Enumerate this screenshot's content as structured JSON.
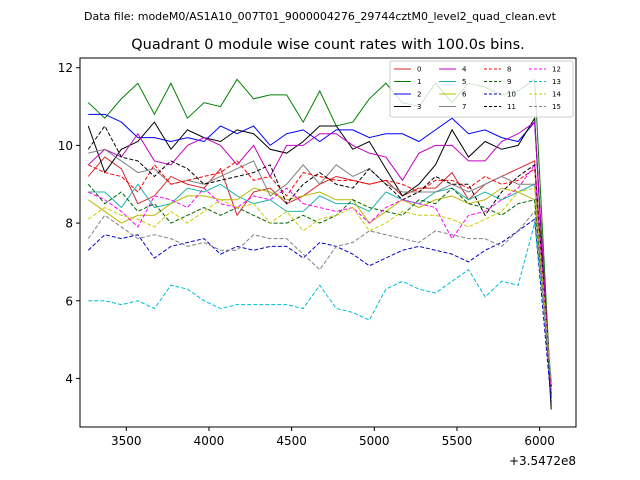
{
  "figure": {
    "suptitle": "Data file: modeM0/AS1A10_007T01_9000004276_29744cztM0_level2_quad_clean.evt"
  },
  "chart_data": {
    "type": "line",
    "title": "Quadrant 0 module wise count rates with 100.0s bins.",
    "xlabel": "",
    "ylabel": "",
    "x_offset_label": "+3.5472e8",
    "xlim": [
      3220,
      6220
    ],
    "ylim": [
      2.75,
      12.25
    ],
    "xticks": [
      3500,
      4000,
      4500,
      5000,
      5500,
      6000
    ],
    "yticks": [
      4,
      6,
      8,
      10,
      12
    ],
    "grid": false,
    "legend": {
      "placement": "top-right",
      "ncol": 4
    },
    "x": [
      3270,
      3370,
      3470,
      3570,
      3670,
      3770,
      3870,
      3970,
      4070,
      4170,
      4270,
      4370,
      4470,
      4570,
      4670,
      4770,
      4870,
      4970,
      5070,
      5170,
      5270,
      5370,
      5470,
      5570,
      5670,
      5770,
      5870,
      5970,
      6070
    ],
    "series": [
      {
        "name": "0",
        "color": "#d62728",
        "dash": "solid",
        "values": [
          9.2,
          9.7,
          9.4,
          8.5,
          8.7,
          9.2,
          9.0,
          8.9,
          9.4,
          8.2,
          8.8,
          8.9,
          8.5,
          8.7,
          9.0,
          9.2,
          9.1,
          9.0,
          9.1,
          8.7,
          8.9,
          8.9,
          9.3,
          8.6,
          9.0,
          9.2,
          9.4,
          9.6,
          3.8
        ]
      },
      {
        "name": "1",
        "color": "#008000",
        "dash": "solid",
        "values": [
          11.1,
          10.7,
          11.2,
          11.6,
          10.8,
          11.6,
          10.7,
          11.1,
          11.0,
          11.7,
          11.2,
          11.3,
          11.3,
          10.6,
          11.4,
          10.5,
          10.6,
          11.2,
          11.6,
          11.1,
          11.0,
          11.6,
          11.1,
          11.6,
          11.5,
          11.3,
          11.4,
          11.7,
          3.5
        ]
      },
      {
        "name": "2",
        "color": "#0000ff",
        "dash": "solid",
        "values": [
          10.8,
          10.8,
          10.6,
          10.2,
          10.2,
          10.1,
          10.2,
          10.1,
          10.5,
          10.3,
          10.5,
          10.0,
          10.3,
          10.4,
          10.1,
          10.4,
          10.4,
          10.2,
          10.3,
          10.3,
          10.1,
          10.4,
          10.7,
          10.3,
          10.4,
          10.2,
          10.1,
          10.6,
          3.3
        ]
      },
      {
        "name": "3",
        "color": "#000000",
        "dash": "solid",
        "values": [
          10.5,
          9.3,
          9.9,
          10.1,
          10.6,
          9.9,
          10.4,
          10.2,
          10.1,
          10.4,
          10.3,
          9.9,
          9.8,
          10.1,
          10.5,
          10.5,
          9.9,
          10.1,
          9.4,
          8.7,
          9.0,
          9.5,
          10.4,
          9.7,
          10.1,
          9.9,
          10.0,
          10.7,
          3.2
        ]
      },
      {
        "name": "4",
        "color": "#c000c0",
        "dash": "solid",
        "values": [
          9.5,
          9.9,
          9.7,
          10.3,
          9.6,
          9.5,
          10.0,
          10.2,
          10.0,
          9.5,
          10.0,
          9.2,
          10.0,
          10.0,
          10.3,
          10.3,
          10.0,
          9.8,
          9.7,
          9.1,
          9.8,
          10.0,
          10.0,
          9.6,
          9.6,
          10.1,
          10.3,
          10.6,
          3.6
        ]
      },
      {
        "name": "5",
        "color": "#20b2aa",
        "dash": "solid",
        "values": [
          8.8,
          8.8,
          8.4,
          9.0,
          8.4,
          8.5,
          8.9,
          8.8,
          9.0,
          8.7,
          8.5,
          8.6,
          8.3,
          8.3,
          8.7,
          8.5,
          8.5,
          8.3,
          8.8,
          8.6,
          8.5,
          8.8,
          8.9,
          8.6,
          8.8,
          8.6,
          8.8,
          9.0,
          3.9
        ]
      },
      {
        "name": "6",
        "color": "#b8b800",
        "dash": "solid",
        "values": [
          8.6,
          8.3,
          8.0,
          8.2,
          8.2,
          8.5,
          8.7,
          8.7,
          8.6,
          8.6,
          8.9,
          8.8,
          8.6,
          8.7,
          8.8,
          8.6,
          8.6,
          8.0,
          8.3,
          8.6,
          8.4,
          8.6,
          8.7,
          8.5,
          8.6,
          8.9,
          8.8,
          8.6,
          3.8
        ]
      },
      {
        "name": "7",
        "color": "#808080",
        "dash": "solid",
        "values": [
          9.8,
          9.9,
          9.6,
          9.3,
          9.4,
          9.0,
          9.1,
          9.0,
          9.2,
          9.4,
          9.6,
          8.7,
          9.0,
          9.5,
          9.0,
          9.5,
          9.2,
          9.4,
          9.0,
          8.8,
          8.8,
          8.8,
          9.0,
          8.8,
          9.0,
          9.2,
          9.0,
          9.0,
          3.6
        ]
      },
      {
        "name": "8",
        "color": "#ff0000",
        "dash": "dash",
        "values": [
          9.5,
          9.3,
          9.2,
          8.8,
          9.5,
          9.0,
          9.1,
          9.2,
          9.3,
          9.6,
          9.1,
          9.2,
          8.7,
          9.3,
          9.2,
          9.1,
          9.1,
          9.0,
          9.1,
          9.0,
          8.8,
          9.1,
          9.1,
          8.9,
          9.2,
          9.0,
          9.1,
          9.4,
          3.8
        ]
      },
      {
        "name": "9",
        "color": "#006400",
        "dash": "dash",
        "values": [
          9.0,
          8.5,
          8.8,
          8.3,
          8.5,
          8.0,
          8.2,
          8.4,
          8.2,
          8.4,
          8.2,
          8.0,
          8.0,
          8.2,
          8.0,
          8.2,
          8.6,
          8.4,
          8.3,
          8.2,
          8.6,
          8.5,
          8.9,
          8.5,
          8.4,
          8.2,
          8.5,
          8.6,
          3.6
        ]
      },
      {
        "name": "10",
        "color": "#0000c8",
        "dash": "dash",
        "values": [
          7.3,
          7.7,
          7.6,
          7.7,
          7.1,
          7.4,
          7.5,
          7.6,
          7.2,
          7.4,
          7.3,
          7.4,
          7.4,
          7.1,
          7.5,
          7.4,
          7.2,
          6.9,
          7.1,
          7.3,
          7.4,
          7.3,
          7.2,
          7.0,
          7.3,
          7.5,
          7.8,
          8.1,
          3.4
        ]
      },
      {
        "name": "11",
        "color": "#000000",
        "dash": "dash",
        "values": [
          9.9,
          10.5,
          9.7,
          9.6,
          9.2,
          9.6,
          9.4,
          9.0,
          9.1,
          9.2,
          9.3,
          9.5,
          8.5,
          9.0,
          9.3,
          9.0,
          8.9,
          9.4,
          9.0,
          8.6,
          8.8,
          9.2,
          9.0,
          9.0,
          8.2,
          8.8,
          9.2,
          9.5,
          3.8
        ]
      },
      {
        "name": "12",
        "color": "#ff00ff",
        "dash": "dash",
        "values": [
          8.8,
          8.6,
          8.3,
          7.9,
          8.7,
          8.6,
          8.4,
          8.9,
          8.5,
          8.4,
          8.7,
          8.6,
          8.9,
          8.5,
          8.4,
          8.3,
          8.4,
          8.0,
          8.4,
          8.6,
          8.5,
          8.4,
          7.6,
          8.2,
          8.3,
          8.6,
          8.9,
          9.5,
          3.7
        ]
      },
      {
        "name": "13",
        "color": "#00bcd4",
        "dash": "dash",
        "values": [
          6.0,
          6.0,
          5.9,
          6.0,
          5.8,
          6.4,
          6.3,
          6.0,
          5.8,
          5.9,
          5.9,
          5.9,
          5.9,
          5.8,
          6.4,
          5.8,
          5.7,
          5.5,
          6.3,
          6.5,
          6.3,
          6.2,
          6.5,
          6.8,
          6.1,
          6.5,
          6.4,
          8.0,
          4.0
        ]
      },
      {
        "name": "14",
        "color": "#cccc00",
        "dash": "dash",
        "values": [
          8.1,
          8.4,
          8.2,
          8.1,
          7.9,
          8.3,
          8.0,
          8.3,
          8.6,
          8.4,
          8.5,
          8.0,
          8.3,
          7.8,
          8.1,
          8.2,
          8.4,
          7.8,
          8.0,
          8.3,
          8.2,
          8.2,
          8.1,
          7.9,
          8.1,
          8.3,
          8.8,
          8.9,
          3.9
        ]
      },
      {
        "name": "15",
        "color": "#808080",
        "dash": "dash",
        "values": [
          7.6,
          8.2,
          7.9,
          7.6,
          7.7,
          7.6,
          7.4,
          7.5,
          7.3,
          7.3,
          7.7,
          7.6,
          7.6,
          7.2,
          6.8,
          7.4,
          7.5,
          7.8,
          7.7,
          7.6,
          7.5,
          7.8,
          7.7,
          7.6,
          7.6,
          7.4,
          7.8,
          8.3,
          3.9
        ]
      }
    ]
  }
}
